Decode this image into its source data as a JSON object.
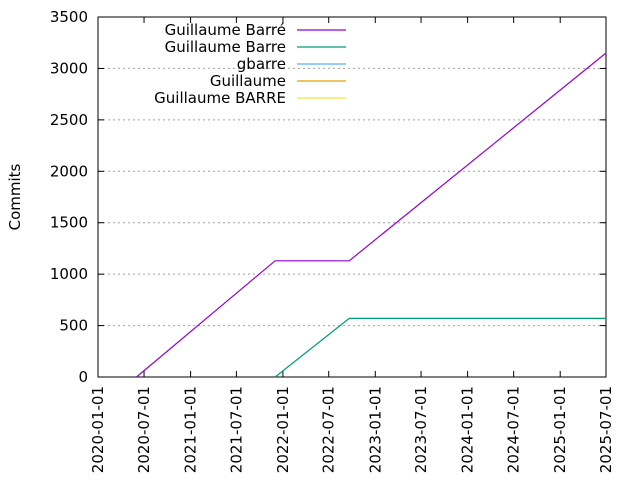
{
  "chart_data": {
    "type": "line",
    "title": "",
    "xlabel": "",
    "ylabel": "Commits",
    "x_type": "date",
    "xlim": [
      "2020-01-01",
      "2025-07-01"
    ],
    "ylim": [
      0,
      3500
    ],
    "xticks": [
      "2020-01-01",
      "2020-07-01",
      "2021-01-01",
      "2021-07-01",
      "2022-01-01",
      "2022-07-01",
      "2023-01-01",
      "2023-07-01",
      "2024-01-01",
      "2024-07-01",
      "2025-01-01",
      "2025-07-01"
    ],
    "yticks": [
      0,
      500,
      1000,
      1500,
      2000,
      2500,
      3000,
      3500
    ],
    "grid": true,
    "legend_position": "top-left",
    "series": [
      {
        "name": "Guillaume Barré",
        "color": "#9400d3",
        "points": [
          {
            "x": "2020-06-01",
            "y": 0
          },
          {
            "x": "2021-12-01",
            "y": 1130
          },
          {
            "x": "2022-09-20",
            "y": 1130
          },
          {
            "x": "2025-07-15",
            "y": 3150
          }
        ]
      },
      {
        "name": "Guillaume Barre",
        "color": "#009e73",
        "points": [
          {
            "x": "2021-12-01",
            "y": 0
          },
          {
            "x": "2022-09-20",
            "y": 570
          },
          {
            "x": "2025-07-15",
            "y": 570
          }
        ]
      },
      {
        "name": "gbarre",
        "color": "#56b4e9",
        "points": []
      },
      {
        "name": "Guillaume",
        "color": "#e69f00",
        "points": []
      },
      {
        "name": "Guillaume BARRE",
        "color": "#f0e442",
        "points": []
      }
    ]
  }
}
